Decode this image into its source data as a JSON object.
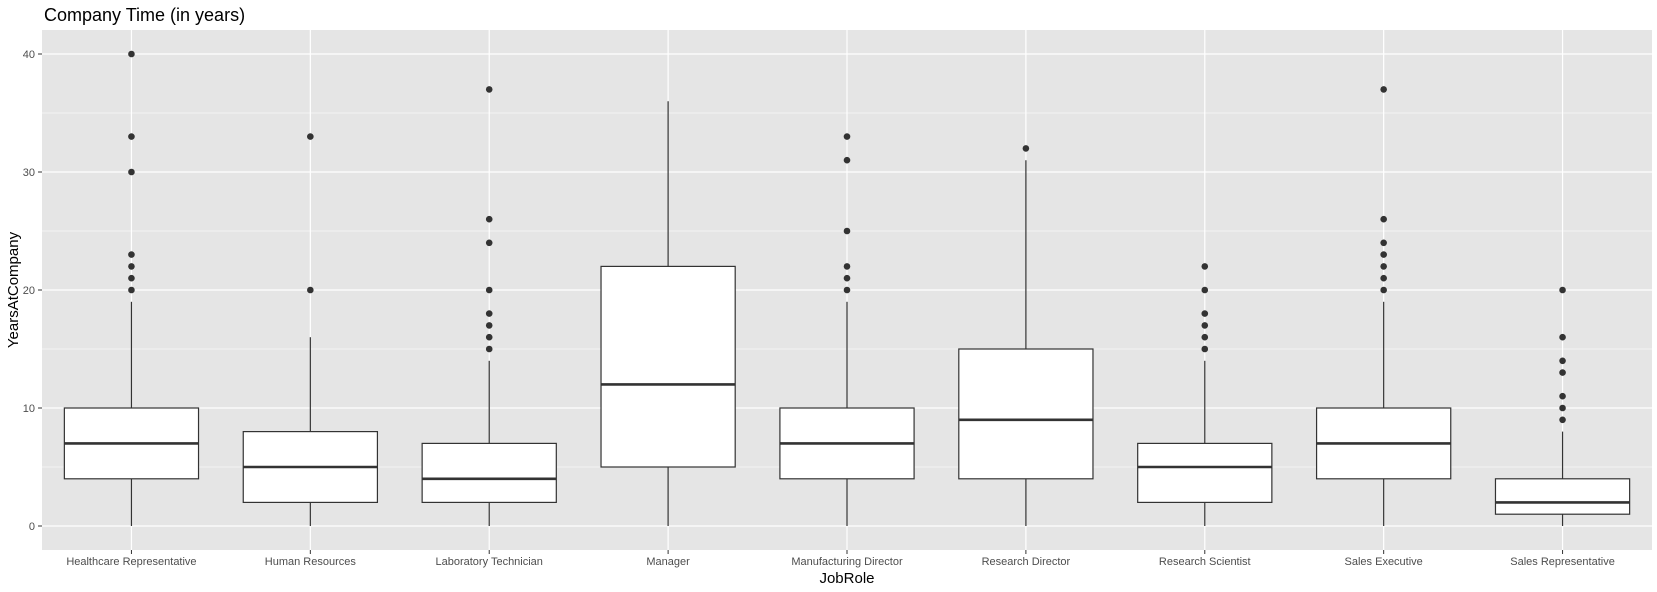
{
  "chart_data": {
    "type": "boxplot",
    "title": "Company Time (in years)",
    "xlabel": "JobRole",
    "ylabel": "YearsAtCompany",
    "ylim": [
      -2,
      42
    ],
    "yticks": [
      0,
      10,
      20,
      30,
      40
    ],
    "grid": true,
    "legend": "none",
    "colors": {
      "panel_bg": "#e5e5e5",
      "grid": "#ffffff",
      "box_fill": "#ffffff",
      "box_stroke": "#333333",
      "outlier": "#333333",
      "tick_text": "#4d4d4d"
    },
    "categories": [
      "Healthcare Representative",
      "Human Resources",
      "Laboratory Technician",
      "Manager",
      "Manufacturing Director",
      "Research Director",
      "Research Scientist",
      "Sales Executive",
      "Sales Representative"
    ],
    "boxes": [
      {
        "category": "Healthcare Representative",
        "whisker_low": 0,
        "q1": 4,
        "median": 7,
        "q3": 10,
        "whisker_high": 19,
        "outliers": [
          20,
          21,
          22,
          23,
          30,
          33,
          40
        ]
      },
      {
        "category": "Human Resources",
        "whisker_low": 0,
        "q1": 2,
        "median": 5,
        "q3": 8,
        "whisker_high": 16,
        "outliers": [
          20,
          33
        ]
      },
      {
        "category": "Laboratory Technician",
        "whisker_low": 0,
        "q1": 2,
        "median": 4,
        "q3": 7,
        "whisker_high": 14,
        "outliers": [
          15,
          16,
          17,
          18,
          20,
          24,
          26,
          37
        ]
      },
      {
        "category": "Manager",
        "whisker_low": 0,
        "q1": 5,
        "median": 12,
        "q3": 22,
        "whisker_high": 36,
        "outliers": []
      },
      {
        "category": "Manufacturing Director",
        "whisker_low": 0,
        "q1": 4,
        "median": 7,
        "q3": 10,
        "whisker_high": 19,
        "outliers": [
          20,
          21,
          22,
          25,
          31,
          33
        ]
      },
      {
        "category": "Research Director",
        "whisker_low": 0,
        "q1": 4,
        "median": 9,
        "q3": 15,
        "whisker_high": 31,
        "outliers": [
          32
        ]
      },
      {
        "category": "Research Scientist",
        "whisker_low": 0,
        "q1": 2,
        "median": 5,
        "q3": 7,
        "whisker_high": 14,
        "outliers": [
          15,
          16,
          17,
          18,
          20,
          22
        ]
      },
      {
        "category": "Sales Executive",
        "whisker_low": 0,
        "q1": 4,
        "median": 7,
        "q3": 10,
        "whisker_high": 19,
        "outliers": [
          20,
          21,
          22,
          23,
          24,
          26,
          37
        ]
      },
      {
        "category": "Sales Representative",
        "whisker_low": 0,
        "q1": 1,
        "median": 2,
        "q3": 4,
        "whisker_high": 8,
        "outliers": [
          9,
          10,
          11,
          13,
          14,
          16,
          20
        ]
      }
    ]
  }
}
